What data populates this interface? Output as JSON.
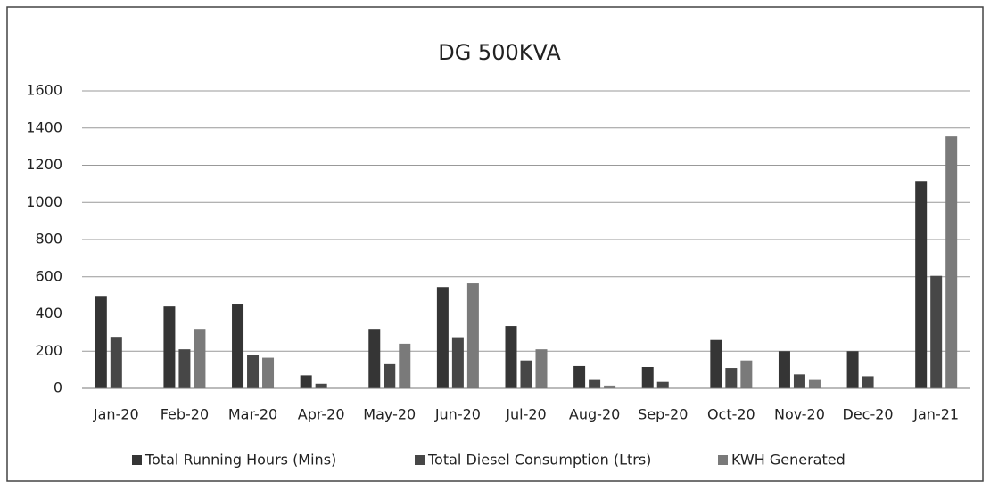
{
  "chart_data": {
    "type": "bar",
    "title": "DG 500KVA",
    "categories": [
      "Jan-20",
      "Feb-20",
      "Mar-20",
      "Apr-20",
      "May-20",
      "Jun-20",
      "Jul-20",
      "Aug-20",
      "Sep-20",
      "Oct-20",
      "Nov-20",
      "Dec-20",
      "Jan-21"
    ],
    "series": [
      {
        "name": "Total Running Hours (Mins)",
        "color": "#353535",
        "values": [
          497,
          440,
          455,
          70,
          320,
          545,
          335,
          120,
          115,
          260,
          200,
          200,
          1115
        ]
      },
      {
        "name": "Total Diesel Consumption (Ltrs)",
        "color": "#474747",
        "values": [
          277,
          210,
          180,
          25,
          130,
          275,
          150,
          45,
          35,
          110,
          75,
          65,
          605
        ]
      },
      {
        "name": "KWH Generated",
        "color": "#7a7a7a",
        "values": [
          0,
          320,
          165,
          0,
          240,
          565,
          210,
          15,
          0,
          150,
          45,
          0,
          1355
        ]
      }
    ],
    "ylim": [
      0,
      1600
    ],
    "yticks": [
      0,
      200,
      400,
      600,
      800,
      1000,
      1200,
      1400,
      1600
    ],
    "grid": true,
    "legend": "bottom"
  }
}
